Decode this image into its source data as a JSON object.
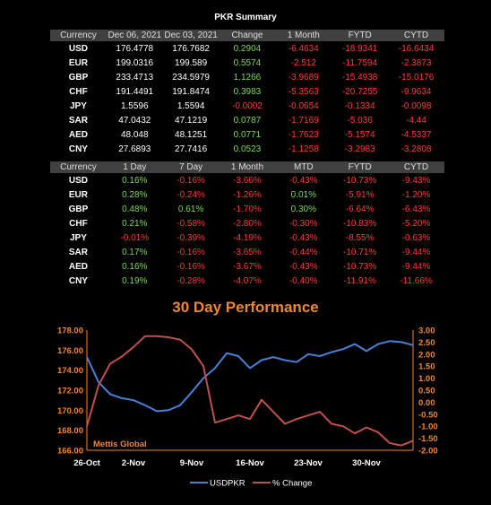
{
  "page_title": "PKR Summary",
  "table1": {
    "headers": [
      "Currency",
      "Dec 06, 2021",
      "Dec 03, 2021",
      "Change",
      "1 Month",
      "FYTD",
      "CYTD"
    ],
    "rows": [
      [
        "USD",
        "176.4778",
        "176.7682",
        "0.2904",
        "-6.4634",
        "-18.9341",
        "-16.6434"
      ],
      [
        "EUR",
        "199.0316",
        "199.589",
        "0.5574",
        "-2.512",
        "-11.7594",
        "-2.3873"
      ],
      [
        "GBP",
        "233.4713",
        "234.5979",
        "1.1266",
        "-3.9689",
        "-15.4938",
        "-15.0176"
      ],
      [
        "CHF",
        "191.4491",
        "191.8474",
        "0.3983",
        "-5.3563",
        "-20.7255",
        "-9.9634"
      ],
      [
        "JPY",
        "1.5596",
        "1.5594",
        "-0.0002",
        "-0.0654",
        "-0.1334",
        "-0.0098"
      ],
      [
        "SAR",
        "47.0432",
        "47.1219",
        "0.0787",
        "-1.7169",
        "-5.036",
        "-4.44"
      ],
      [
        "AED",
        "48.048",
        "48.1251",
        "0.0771",
        "-1.7623",
        "-5.1574",
        "-4.5337"
      ],
      [
        "CNY",
        "27.6893",
        "27.7416",
        "0.0523",
        "-1.1258",
        "-3.2983",
        "-3.2808"
      ]
    ]
  },
  "table2": {
    "headers": [
      "Currency",
      "1 Day",
      "7 Day",
      "1 Month",
      "MTD",
      "FYTD",
      "CYTD"
    ],
    "rows": [
      [
        "USD",
        "0.16%",
        "-0.16%",
        "-3.66%",
        "-0.43%",
        "-10.73%",
        "-9.43%"
      ],
      [
        "EUR",
        "0.28%",
        "-0.24%",
        "-1.26%",
        "0.01%",
        "-5.91%",
        "-1.20%"
      ],
      [
        "GBP",
        "0.48%",
        "0.61%",
        "-1.70%",
        "0.30%",
        "-6.64%",
        "-6.43%"
      ],
      [
        "CHF",
        "0.21%",
        "-0.58%",
        "-2.80%",
        "-0.30%",
        "-10.83%",
        "-5.20%"
      ],
      [
        "JPY",
        "-0.01%",
        "-0.39%",
        "-4.19%",
        "-0.43%",
        "-8.55%",
        "-0.63%"
      ],
      [
        "SAR",
        "0.17%",
        "-0.16%",
        "-3.65%",
        "-0.44%",
        "-10.71%",
        "-9.44%"
      ],
      [
        "AED",
        "0.16%",
        "-0.16%",
        "-3.67%",
        "-0.43%",
        "-10.73%",
        "-9.44%"
      ],
      [
        "CNY",
        "0.19%",
        "-0.28%",
        "-4.07%",
        "-0.40%",
        "-11.91%",
        "-11.66%"
      ]
    ]
  },
  "colors": {
    "positive": "#7ed957",
    "negative": "#ff3b3b",
    "usd_line": "#4a7fd4",
    "change_line": "#c0504d",
    "accent": "#f0862f",
    "axis": "#f0862f"
  },
  "chart_data": {
    "type": "line",
    "title": "30 Day Performance",
    "watermark": "Mettis Global",
    "x": [
      "26-Oct",
      "27-Oct",
      "28-Oct",
      "1-Nov",
      "2-Nov",
      "3-Nov",
      "4-Nov",
      "5-Nov",
      "8-Nov",
      "9-Nov",
      "10-Nov",
      "11-Nov",
      "12-Nov",
      "15-Nov",
      "16-Nov",
      "17-Nov",
      "18-Nov",
      "19-Nov",
      "22-Nov",
      "23-Nov",
      "24-Nov",
      "25-Nov",
      "26-Nov",
      "29-Nov",
      "30-Nov",
      "1-Dec",
      "2-Dec",
      "3-Dec",
      "6-Dec"
    ],
    "x_tick_labels": [
      "26-Oct",
      "2-Nov",
      "9-Nov",
      "16-Nov",
      "23-Nov",
      "30-Nov"
    ],
    "series": [
      {
        "name": "USDPKR",
        "axis": "left",
        "values": [
          175.3,
          172.8,
          171.6,
          171.2,
          171.0,
          170.5,
          169.9,
          170.0,
          170.5,
          171.8,
          173.2,
          174.2,
          175.7,
          175.4,
          174.2,
          175.0,
          175.3,
          175.0,
          174.8,
          175.6,
          175.4,
          175.8,
          176.1,
          176.6,
          175.9,
          176.6,
          176.9,
          176.8,
          176.5
        ]
      },
      {
        "name": "% Change",
        "axis": "right",
        "values": [
          -1.0,
          0.7,
          1.6,
          1.9,
          2.3,
          2.75,
          2.75,
          2.7,
          2.6,
          2.2,
          1.5,
          -0.85,
          -0.7,
          -0.55,
          -0.7,
          0.1,
          -0.4,
          -0.9,
          -0.7,
          -0.55,
          -0.4,
          -0.9,
          -1.0,
          -1.3,
          -1.05,
          -1.25,
          -1.7,
          -1.8,
          -1.6
        ]
      }
    ],
    "y_left": {
      "ticks": [
        "166.00",
        "168.00",
        "170.00",
        "172.00",
        "174.00",
        "176.00",
        "178.00"
      ],
      "range": [
        166,
        178
      ]
    },
    "y_right": {
      "ticks": [
        "-2.00",
        "-1.50",
        "-1.00",
        "-0.50",
        "0.00",
        "0.50",
        "1.00",
        "1.50",
        "2.00",
        "2.50",
        "3.00"
      ],
      "range": [
        -2,
        3
      ]
    },
    "legend": {
      "position": "bottom",
      "entries": [
        "USDPKR",
        "% Change"
      ]
    },
    "grid": false
  }
}
